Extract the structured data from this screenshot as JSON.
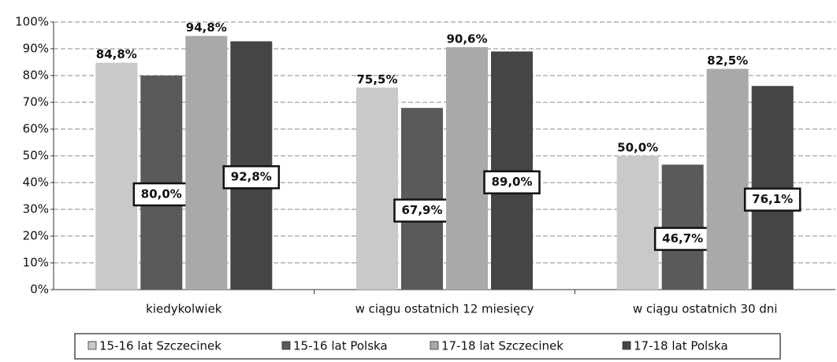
{
  "chart_data": {
    "type": "bar",
    "categories": [
      "kiedykolwiek",
      "w ciągu ostatnich 12 miesięcy",
      "w ciągu ostatnich 30 dni"
    ],
    "series": [
      {
        "name": "15-16 lat Szczecinek",
        "color": "#c9c9c9",
        "values": [
          84.8,
          75.5,
          50.0
        ],
        "value_labels": [
          "84,8%",
          "75,5%",
          "50,0%"
        ]
      },
      {
        "name": "15-16 lat Polska",
        "color": "#5a5a5a",
        "values": [
          80.0,
          67.9,
          46.7
        ],
        "value_labels": [
          "80,0%",
          "67,9%",
          "46,7%"
        ]
      },
      {
        "name": "17-18 lat Szczecinek",
        "color": "#a9a9a9",
        "values": [
          94.8,
          90.6,
          82.5
        ],
        "value_labels": [
          "94,8%",
          "90,6%",
          "82,5%"
        ]
      },
      {
        "name": "17-18 lat Polska",
        "color": "#454545",
        "values": [
          92.8,
          89.0,
          76.1
        ],
        "value_labels": [
          "92,8%",
          "89,0%",
          "76,1%"
        ]
      }
    ],
    "ylim": [
      0,
      100
    ],
    "yticks": [
      {
        "value": 0,
        "label": "0%"
      },
      {
        "value": 10,
        "label": "10%"
      },
      {
        "value": 20,
        "label": "20%"
      },
      {
        "value": 30,
        "label": "30%"
      },
      {
        "value": 40,
        "label": "40%"
      },
      {
        "value": 50,
        "label": "50%"
      },
      {
        "value": 60,
        "label": "60%"
      },
      {
        "value": 70,
        "label": "70%"
      },
      {
        "value": 80,
        "label": "80%"
      },
      {
        "value": 90,
        "label": "90%"
      },
      {
        "value": 100,
        "label": "100%"
      }
    ],
    "grid": true
  }
}
